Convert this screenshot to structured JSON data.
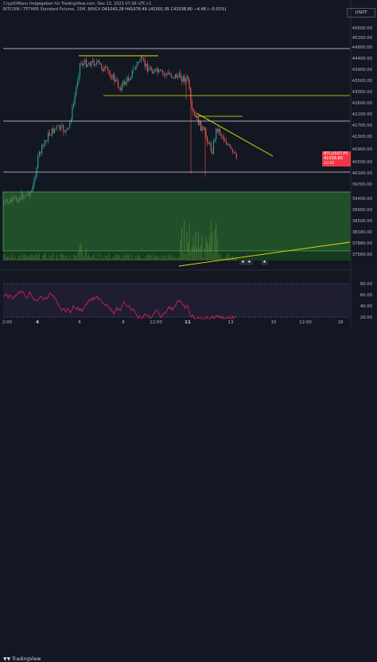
{
  "header": {
    "attribution": "CryptOManu freigegeben für TradingView.com, Dez 13, 2023 07:36 UTC+1",
    "symbol_line": "BITCOIN / TETHER Standard Futures, 15M, BINGX",
    "ohlc": "O41043.28 H41078.49 L41001.05 C41038.80 −4.48 (−0.01%)",
    "currency": "USDT"
  },
  "price_tag": {
    "value": "41038.80",
    "symbol": "BTCUSDT.PS",
    "countdown": "23:55"
  },
  "y_axis": {
    "labels": [
      "45600.00",
      "45100.00",
      "44800.00",
      "44400.00",
      "43900.00",
      "43500.00",
      "43000.00",
      "42600.00",
      "42100.00",
      "41700.00",
      "41300.00",
      "40900.00",
      "40500.00",
      "40100.00",
      "39700.00",
      "39400.00",
      "38900.00",
      "38500.00",
      "38180.00",
      "37880.00",
      "37560.00"
    ]
  },
  "x_axis": {
    "labels": [
      {
        "text": "2:00",
        "bold": false
      },
      {
        "text": "4",
        "bold": true
      },
      {
        "text": "6",
        "bold": false
      },
      {
        "text": "8",
        "bold": false
      },
      {
        "text": "12:00",
        "bold": false
      },
      {
        "text": "11",
        "bold": true
      },
      {
        "text": "13",
        "bold": false
      },
      {
        "text": "15",
        "bold": false
      },
      {
        "text": "12:00",
        "bold": false
      },
      {
        "text": "18",
        "bold": false
      }
    ]
  },
  "rsi": {
    "labels": [
      "80.00",
      "60.00",
      "40.00",
      "20.00"
    ]
  },
  "footer": {
    "brand": "TradingView"
  },
  "colors": {
    "bg": "#131722",
    "up": "#26a69a",
    "down": "#ef5350",
    "yellow": "#e6e600",
    "zone": "#1e6b3a",
    "rsi": "#e91e63"
  }
}
